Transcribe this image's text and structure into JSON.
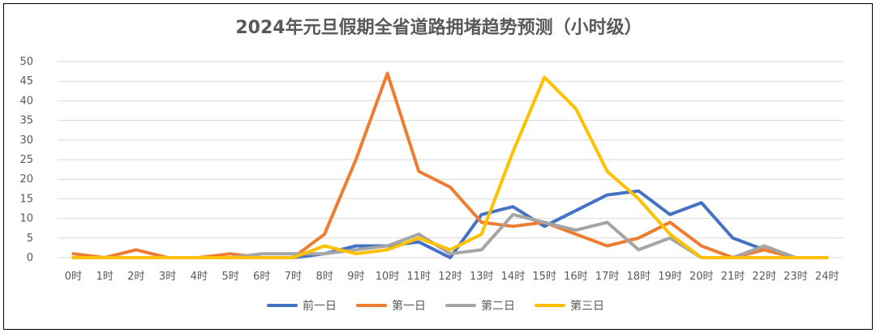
{
  "chart_data": {
    "type": "line",
    "title": "2024年元旦假期全省道路拥堵趋势预测（小时级）",
    "categories": [
      "0时",
      "1时",
      "2时",
      "3时",
      "4时",
      "5时",
      "6时",
      "7时",
      "8时",
      "9时",
      "10时",
      "11时",
      "12时",
      "13时",
      "14时",
      "15时",
      "16时",
      "17时",
      "18时",
      "19时",
      "20时",
      "21时",
      "22时",
      "23时",
      "24时"
    ],
    "ylim": [
      0,
      50
    ],
    "yticks": [
      0,
      5,
      10,
      15,
      20,
      25,
      30,
      35,
      40,
      45,
      50
    ],
    "grid": true,
    "legend_position": "bottom",
    "series": [
      {
        "name": "前一日",
        "color": "#4472C4",
        "values": [
          0,
          0,
          0,
          0,
          0,
          0,
          0,
          0,
          1,
          3,
          3,
          4,
          0,
          11,
          13,
          8,
          12,
          16,
          17,
          11,
          14,
          5,
          2,
          0,
          0
        ]
      },
      {
        "name": "第一日",
        "color": "#ED7D31",
        "values": [
          1,
          0,
          2,
          0,
          0,
          1,
          0,
          0,
          6,
          25,
          47,
          22,
          18,
          9,
          8,
          9,
          6,
          3,
          5,
          9,
          3,
          0,
          2,
          0,
          0
        ]
      },
      {
        "name": "第二日",
        "color": "#A5A5A5",
        "values": [
          0,
          0,
          0,
          0,
          0,
          0,
          1,
          1,
          1,
          2,
          3,
          6,
          1,
          2,
          11,
          9,
          7,
          9,
          2,
          5,
          0,
          0,
          3,
          0,
          0
        ]
      },
      {
        "name": "第三日",
        "color": "#FFC000",
        "values": [
          0,
          0,
          0,
          0,
          0,
          0,
          0,
          0,
          3,
          1,
          2,
          5,
          2,
          6,
          27,
          46,
          38,
          22,
          15,
          6,
          0,
          0,
          0,
          0,
          0
        ]
      }
    ]
  }
}
